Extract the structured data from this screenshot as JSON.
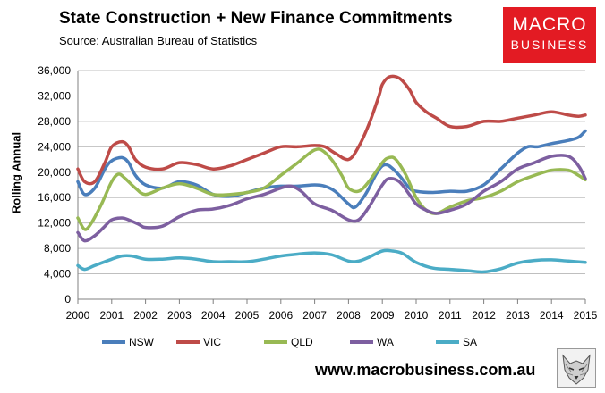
{
  "header": {
    "title": "State Construction + New Finance Commitments",
    "subtitle": "Source: Australian Bureau of Statistics"
  },
  "logo": {
    "line1": "MACRO",
    "line2": "BUSINESS"
  },
  "footer": {
    "url": "www.macrobusiness.com.au"
  },
  "chart_data": {
    "type": "line",
    "title": "State Construction + New Finance Commitments",
    "ylabel": "Rolling Annual",
    "xlabel": "",
    "xlim": [
      2000,
      2015
    ],
    "ylim": [
      0,
      36000
    ],
    "yticks": [
      0,
      4000,
      8000,
      12000,
      16000,
      20000,
      24000,
      28000,
      32000,
      36000
    ],
    "ytick_labels": [
      "0",
      "4,000",
      "8,000",
      "12,000",
      "16,000",
      "20,000",
      "24,000",
      "28,000",
      "32,000",
      "36,000"
    ],
    "xticks": [
      2000,
      2001,
      2002,
      2003,
      2004,
      2005,
      2006,
      2007,
      2008,
      2009,
      2010,
      2011,
      2012,
      2013,
      2014,
      2015
    ],
    "xtick_labels": [
      "2000",
      "2001",
      "2002",
      "2003",
      "2004",
      "2005",
      "2006",
      "2007",
      "2008",
      "2009",
      "2010",
      "2011",
      "2012",
      "2013",
      "2014",
      "2015"
    ],
    "grid": true,
    "legend": "bottom",
    "series": [
      {
        "name": "NSW",
        "color": "#4a7ebb",
        "x": [
          2000,
          2000.2,
          2000.5,
          2000.8,
          2001,
          2001.3,
          2001.5,
          2001.7,
          2002,
          2002.5,
          2003,
          2003.5,
          2004,
          2004.5,
          2005,
          2005.5,
          2006,
          2006.5,
          2007,
          2007.3,
          2007.6,
          2008,
          2008.2,
          2008.5,
          2008.8,
          2009,
          2009.2,
          2009.5,
          2009.8,
          2010,
          2010.5,
          2011,
          2011.5,
          2012,
          2012.5,
          2013,
          2013.3,
          2013.6,
          2014,
          2014.5,
          2014.8,
          2015
        ],
        "y": [
          18500,
          16500,
          17500,
          20500,
          21800,
          22300,
          21500,
          19500,
          18000,
          17500,
          18500,
          18000,
          16500,
          16200,
          16800,
          17500,
          17800,
          17800,
          18000,
          17800,
          17000,
          15000,
          14500,
          16500,
          19500,
          21000,
          21000,
          19500,
          17500,
          17000,
          16800,
          17000,
          17000,
          18000,
          20500,
          23000,
          24000,
          24000,
          24500,
          25000,
          25500,
          26500
        ]
      },
      {
        "name": "VIC",
        "color": "#be4b48",
        "x": [
          2000,
          2000.2,
          2000.5,
          2000.8,
          2001,
          2001.3,
          2001.5,
          2001.7,
          2002,
          2002.5,
          2003,
          2003.5,
          2004,
          2004.5,
          2005,
          2005.5,
          2006,
          2006.5,
          2007,
          2007.3,
          2007.6,
          2008,
          2008.3,
          2008.6,
          2008.9,
          2009,
          2009.2,
          2009.5,
          2009.8,
          2010,
          2010.3,
          2010.6,
          2011,
          2011.5,
          2012,
          2012.5,
          2013,
          2013.5,
          2014,
          2014.5,
          2014.8,
          2015
        ],
        "y": [
          20500,
          18500,
          18500,
          21500,
          24000,
          24800,
          24000,
          22000,
          20800,
          20500,
          21500,
          21200,
          20500,
          21000,
          22000,
          23000,
          24000,
          24000,
          24200,
          24000,
          23000,
          22000,
          24000,
          27500,
          32000,
          33800,
          35000,
          34800,
          33000,
          31000,
          29500,
          28500,
          27200,
          27200,
          28000,
          28000,
          28500,
          29000,
          29500,
          29000,
          28800,
          29000
        ]
      },
      {
        "name": "QLD",
        "color": "#98b954",
        "x": [
          2000,
          2000.2,
          2000.4,
          2000.7,
          2001,
          2001.2,
          2001.4,
          2001.7,
          2002,
          2002.5,
          2003,
          2003.5,
          2004,
          2004.5,
          2005,
          2005.5,
          2006,
          2006.5,
          2006.8,
          2007,
          2007.2,
          2007.5,
          2007.8,
          2008,
          2008.3,
          2008.6,
          2009,
          2009.2,
          2009.4,
          2009.7,
          2010,
          2010.3,
          2010.6,
          2011,
          2011.5,
          2012,
          2012.5,
          2013,
          2013.5,
          2014,
          2014.5,
          2014.8,
          2015
        ],
        "y": [
          12800,
          11000,
          12000,
          15000,
          18500,
          19700,
          19000,
          17500,
          16500,
          17500,
          18200,
          17500,
          16500,
          16500,
          16800,
          17500,
          19500,
          21500,
          22800,
          23500,
          23500,
          22000,
          19500,
          17500,
          17000,
          18500,
          21500,
          22300,
          22000,
          19500,
          16000,
          14000,
          13500,
          14500,
          15500,
          16000,
          17000,
          18500,
          19500,
          20300,
          20300,
          19500,
          18800
        ]
      },
      {
        "name": "WA",
        "color": "#7d5fa0",
        "x": [
          2000,
          2000.2,
          2000.5,
          2000.8,
          2001,
          2001.3,
          2001.5,
          2001.8,
          2002,
          2002.5,
          2003,
          2003.5,
          2004,
          2004.5,
          2005,
          2005.5,
          2006,
          2006.3,
          2006.6,
          2007,
          2007.5,
          2008,
          2008.3,
          2008.6,
          2009,
          2009.2,
          2009.5,
          2009.8,
          2010,
          2010.3,
          2010.6,
          2011,
          2011.5,
          2012,
          2012.5,
          2013,
          2013.5,
          2014,
          2014.5,
          2014.8,
          2015
        ],
        "y": [
          10500,
          9200,
          10000,
          11500,
          12500,
          12800,
          12500,
          11800,
          11300,
          11500,
          13000,
          14000,
          14200,
          14800,
          15800,
          16500,
          17500,
          17800,
          17000,
          15000,
          14000,
          12500,
          12500,
          14500,
          18000,
          19000,
          18500,
          16500,
          15000,
          14000,
          13500,
          14000,
          15000,
          17000,
          18500,
          20500,
          21500,
          22500,
          22500,
          21000,
          19000
        ]
      },
      {
        "name": "SA",
        "color": "#4bacc6",
        "x": [
          2000,
          2000.2,
          2000.5,
          2001,
          2001.3,
          2001.6,
          2002,
          2002.5,
          2003,
          2003.5,
          2004,
          2004.5,
          2005,
          2005.5,
          2006,
          2006.5,
          2007,
          2007.5,
          2008,
          2008.3,
          2008.6,
          2009,
          2009.3,
          2009.6,
          2010,
          2010.5,
          2011,
          2011.5,
          2012,
          2012.5,
          2013,
          2013.5,
          2014,
          2014.5,
          2015
        ],
        "y": [
          5300,
          4700,
          5300,
          6300,
          6800,
          6800,
          6300,
          6300,
          6500,
          6300,
          5900,
          5900,
          5900,
          6300,
          6800,
          7100,
          7300,
          7000,
          6000,
          6000,
          6600,
          7600,
          7600,
          7200,
          5800,
          4900,
          4700,
          4500,
          4300,
          4800,
          5700,
          6100,
          6200,
          6000,
          5800
        ]
      }
    ]
  }
}
